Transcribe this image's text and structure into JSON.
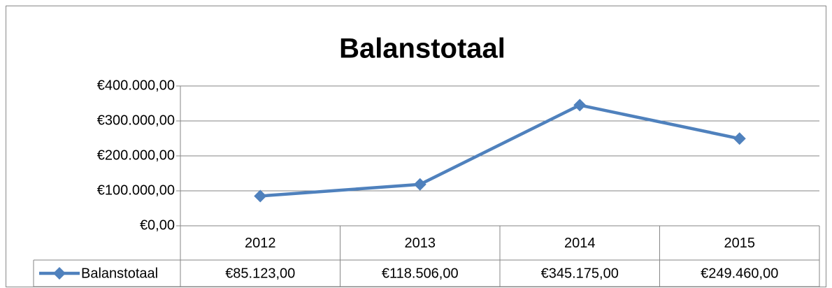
{
  "chart_data": {
    "type": "line",
    "title": "Balanstotaal",
    "categories": [
      "2012",
      "2013",
      "2014",
      "2015"
    ],
    "series": [
      {
        "name": "Balanstotaal",
        "color": "#4f81bd",
        "values": [
          85123,
          118506,
          345175,
          249460
        ],
        "value_labels": [
          "€85.123,00",
          "€118.506,00",
          "€345.175,00",
          "€249.460,00"
        ]
      }
    ],
    "ylim": [
      0,
      400000
    ],
    "yticks": [
      {
        "value": 0,
        "label": "€0,00"
      },
      {
        "value": 100000,
        "label": "€100.000,00"
      },
      {
        "value": 200000,
        "label": "€200.000,00"
      },
      {
        "value": 300000,
        "label": "€300.000,00"
      },
      {
        "value": 400000,
        "label": "€400.000,00"
      }
    ],
    "grid": true,
    "legend": "data-table"
  }
}
